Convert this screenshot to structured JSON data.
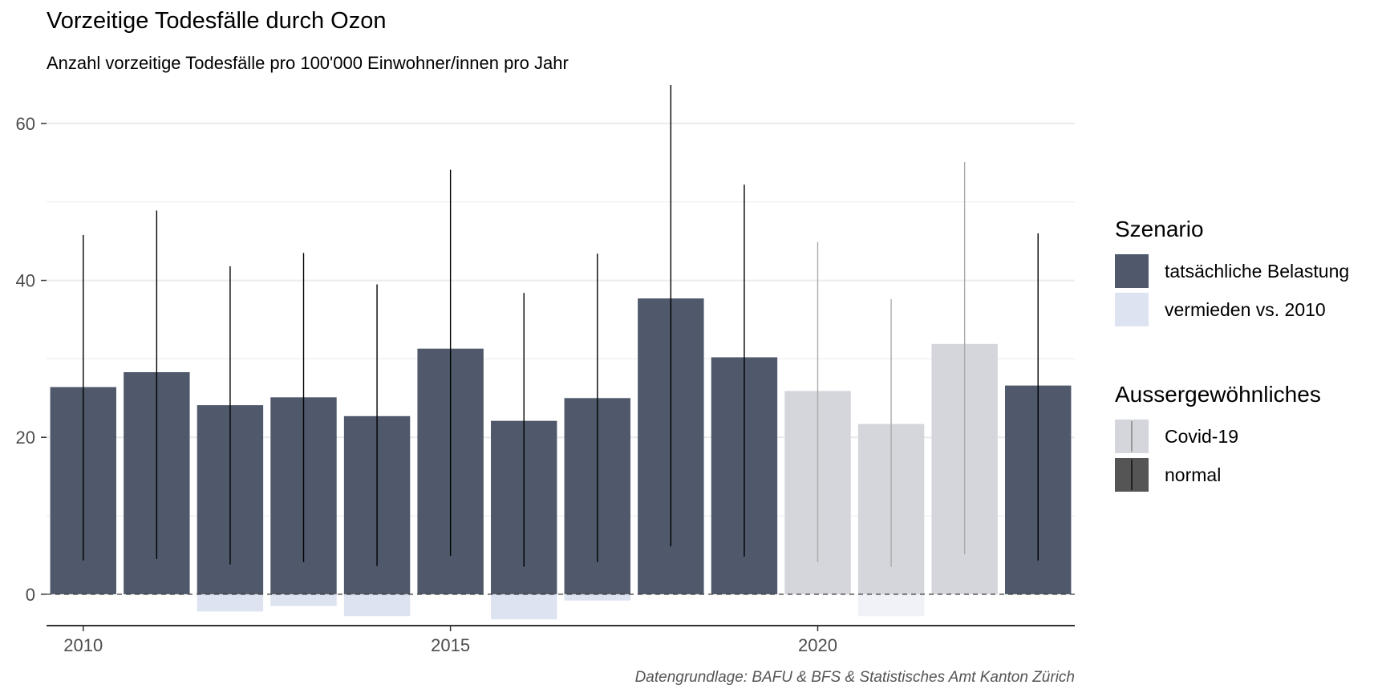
{
  "title": "Vorzeitige Todesfälle durch Ozon",
  "subtitle": "Anzahl vorzeitige Todesfälle pro 100'000 Einwohner/innen pro Jahr",
  "caption": "Datengrundlage: BAFU & BFS & Statistisches Amt Kanton Zürich",
  "colors": {
    "actual": "#4f596b",
    "avoided": "#dde3f1",
    "covid_bar": "#d4d6dc",
    "covid_avoided": "#f1f2f8",
    "error_normal": "#000000",
    "error_covid": "#aaaaaa",
    "grid": "#ebebeb"
  },
  "legend": {
    "szenario_title": "Szenario",
    "szenario_items": [
      {
        "label": "tatsächliche Belastung",
        "color": "#4f596b"
      },
      {
        "label": "vermieden vs. 2010",
        "color": "#dde3f1"
      }
    ],
    "aussergewoehnlich_title": "Aussergewöhnliches",
    "aussergewoehnlich_items": [
      {
        "label": "Covid-19",
        "fill": "#d4d6dc",
        "line": "#999999"
      },
      {
        "label": "normal",
        "fill": "#555555",
        "line": "#222222"
      }
    ]
  },
  "chart_data": {
    "type": "bar",
    "x_ticks": [
      2010,
      2015,
      2020
    ],
    "y_ticks": [
      0,
      20,
      40,
      60
    ],
    "ylim": [
      -4,
      65
    ],
    "xlim": [
      2009.5,
      2023.5
    ],
    "grid": true,
    "legend_position": "right",
    "reference_line": 0,
    "series": [
      {
        "name": "tatsächliche Belastung",
        "x": [
          2010,
          2011,
          2012,
          2013,
          2014,
          2015,
          2016,
          2017,
          2018,
          2019,
          2020,
          2021,
          2022,
          2023
        ],
        "values": [
          26.4,
          28.3,
          24.1,
          25.1,
          22.7,
          31.3,
          22.1,
          25.0,
          37.7,
          30.2,
          25.9,
          21.7,
          31.9,
          26.6
        ],
        "lower": [
          4.3,
          4.5,
          3.8,
          4.1,
          3.6,
          4.9,
          3.5,
          4.1,
          6.1,
          4.8,
          4.1,
          3.5,
          5.1,
          4.3
        ],
        "upper": [
          45.8,
          48.9,
          41.8,
          43.5,
          39.5,
          54.1,
          38.4,
          43.4,
          64.9,
          52.2,
          44.9,
          37.6,
          55.1,
          46.0
        ]
      },
      {
        "name": "vermieden vs. 2010",
        "x": [
          2010,
          2011,
          2012,
          2013,
          2014,
          2015,
          2016,
          2017,
          2018,
          2019,
          2020,
          2021,
          2022,
          2023
        ],
        "values": [
          0,
          0,
          -2.2,
          -1.5,
          -2.8,
          0,
          -3.2,
          -0.8,
          0,
          0,
          0,
          -2.8,
          0,
          0
        ]
      }
    ],
    "covid_years": [
      2020,
      2021,
      2022
    ]
  }
}
